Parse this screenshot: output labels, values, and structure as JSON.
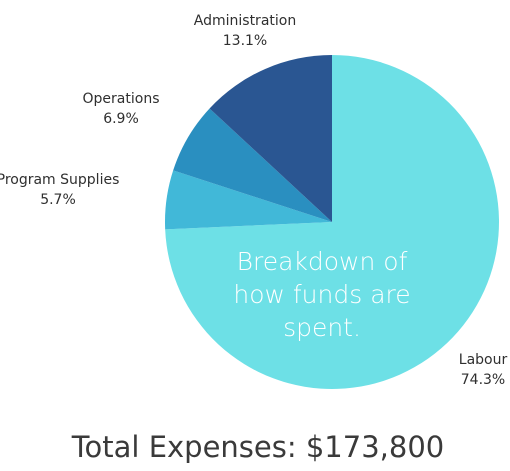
{
  "chart_data": {
    "type": "pie",
    "title": "",
    "center_text": [
      "Breakdown of",
      "how funds are",
      "spent."
    ],
    "footer": "Total Expenses: $173,800",
    "slices": [
      {
        "category": "Labour",
        "value": 74.3,
        "label": "74.3%",
        "color": "#6de0e6"
      },
      {
        "category": "Program Supplies",
        "value": 5.7,
        "label": "5.7%",
        "color": "#41b8d8"
      },
      {
        "category": "Operations",
        "value": 6.9,
        "label": "6.9%",
        "color": "#2a8fc0"
      },
      {
        "category": "Administration",
        "value": 13.1,
        "label": "13.1%",
        "color": "#2a5692"
      }
    ],
    "legend": "none",
    "grid": false
  }
}
